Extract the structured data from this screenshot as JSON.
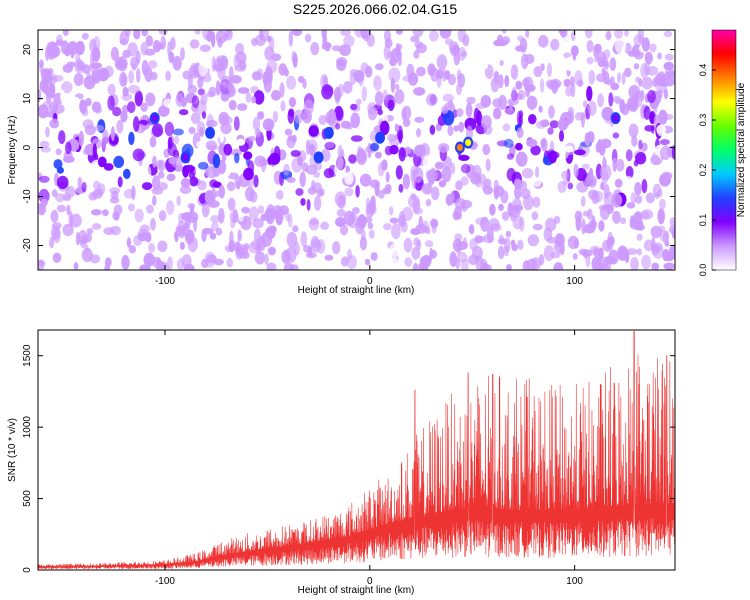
{
  "figure_title": "S225.2026.066.02.04.G15",
  "chart_data": [
    {
      "type": "heatmap",
      "title": "",
      "xlabel": "Height of straight line (km)",
      "ylabel": "Frequency (Hz)",
      "xlim": [
        -162,
        149
      ],
      "ylim": [
        -25,
        24
      ],
      "x_ticks": [
        -100,
        0,
        100
      ],
      "y_ticks": [
        -20,
        -10,
        0,
        10,
        20
      ],
      "colorbar": {
        "label": "Normalized spectral amplitude",
        "range": [
          0,
          0.48
        ],
        "ticks": [
          0.0,
          0.1,
          0.2,
          0.3,
          0.4
        ],
        "colors": [
          "#ffffff",
          "#cc99ff",
          "#8000ff",
          "#2040ff",
          "#00ccff",
          "#00ff66",
          "#66ff00",
          "#ffff00",
          "#ff8000",
          "#ff0000",
          "#ff00aa"
        ]
      },
      "hot_spots": [
        {
          "x": 44,
          "y": 0,
          "value": 0.4
        },
        {
          "x": 48,
          "y": 1,
          "value": 0.35
        },
        {
          "x": -25,
          "y": -2,
          "value": 0.15
        },
        {
          "x": 5,
          "y": 2,
          "value": 0.13
        },
        {
          "x": -20,
          "y": 3,
          "value": 0.12
        },
        {
          "x": -78,
          "y": 3,
          "value": 0.12
        },
        {
          "x": -90,
          "y": -2,
          "value": 0.1
        },
        {
          "x": -105,
          "y": 6,
          "value": 0.1
        },
        {
          "x": 120,
          "y": 6,
          "value": 0.1
        }
      ]
    },
    {
      "type": "line",
      "title": "",
      "xlabel": "Height of straight line (km)",
      "ylabel": "SNR (10 * v/v)",
      "xlim": [
        -162,
        149
      ],
      "ylim": [
        0,
        1680
      ],
      "x_ticks": [
        -100,
        0,
        100
      ],
      "y_ticks": [
        0,
        500,
        1000,
        1500
      ],
      "series_color": "#ee3333",
      "envelope": {
        "x": [
          -162,
          -130,
          -100,
          -85,
          -70,
          -50,
          -30,
          -10,
          10,
          30,
          50,
          70,
          90,
          110,
          130,
          149
        ],
        "mean": [
          25,
          30,
          40,
          60,
          110,
          150,
          190,
          240,
          330,
          390,
          450,
          420,
          420,
          430,
          460,
          470
        ],
        "max": [
          40,
          50,
          70,
          120,
          220,
          300,
          350,
          480,
          700,
          1100,
          1380,
          1380,
          1300,
          1340,
          1650,
          1500
        ]
      },
      "peaks": [
        {
          "x": 22,
          "y": 1260
        },
        {
          "x": 48,
          "y": 1380
        },
        {
          "x": 60,
          "y": 1370
        },
        {
          "x": 129,
          "y": 1670
        },
        {
          "x": 145,
          "y": 1500
        }
      ]
    }
  ]
}
